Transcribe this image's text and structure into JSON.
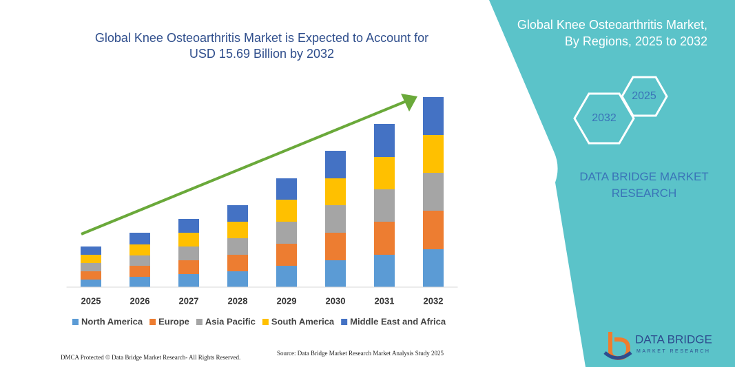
{
  "chart_data": {
    "type": "stacked-bar",
    "title": "Global Knee Osteoarthritis Market is Expected to Account for USD 15.69 Billion by 2032",
    "categories": [
      "2025",
      "2026",
      "2027",
      "2028",
      "2029",
      "2030",
      "2031",
      "2032"
    ],
    "series": [
      {
        "name": "North America",
        "color": "#5b9bd5",
        "values": [
          11,
          15,
          19,
          23,
          31,
          39,
          47,
          55
        ]
      },
      {
        "name": "Europe",
        "color": "#ed7d31",
        "values": [
          12,
          16,
          20,
          24,
          32,
          40,
          48,
          56
        ]
      },
      {
        "name": "Asia Pacific",
        "color": "#a5a5a5",
        "values": [
          12,
          15,
          20,
          24,
          32,
          40,
          47,
          55
        ]
      },
      {
        "name": "South America",
        "color": "#ffc000",
        "values": [
          12,
          16,
          20,
          24,
          32,
          39,
          47,
          55
        ]
      },
      {
        "name": "Middle East and Africa",
        "color": "#4472c4",
        "values": [
          12,
          17,
          20,
          24,
          31,
          40,
          48,
          55
        ]
      }
    ],
    "legend": "bottom"
  },
  "panel": {
    "title": "Global Knee Osteoarthritis Market, By Regions, 2025 to 2032",
    "hexagons": [
      "2025",
      "2032"
    ],
    "brand": "DATA BRIDGE MARKET RESEARCH"
  },
  "footer": {
    "left": "DMCA Protected © Data Bridge Market Research- All Rights Reserved.",
    "right": "Source: Data Bridge Market Research  Market Analysis Study 2025"
  },
  "logo": {
    "name": "DATA BRIDGE",
    "tagline": "MARKET RESEARCH"
  }
}
